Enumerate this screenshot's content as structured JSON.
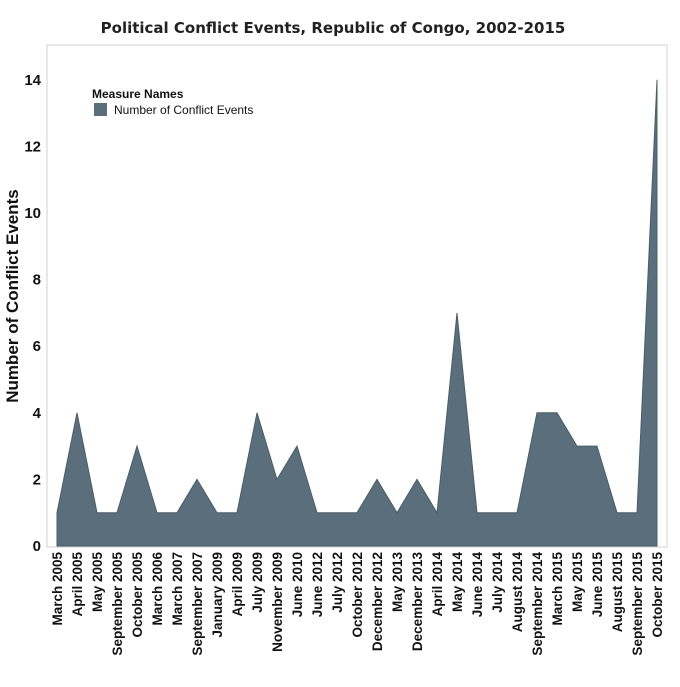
{
  "chart_data": {
    "type": "area",
    "title": "Political Conflict Events, Republic of Congo, 2002-2015",
    "ylabel": "Number of Conflict Events",
    "xlabel": "",
    "ylim": [
      0,
      15
    ],
    "yticks": [
      0,
      2,
      4,
      6,
      8,
      10,
      12,
      14
    ],
    "grid": false,
    "legend": {
      "title": "Measure Names",
      "position": "top-left",
      "entries": [
        "Number of Conflict Events"
      ]
    },
    "categories": [
      "March 2005",
      "April 2005",
      "May 2005",
      "September 2005",
      "October 2005",
      "March 2006",
      "March 2007",
      "September 2007",
      "January 2009",
      "April 2009",
      "July 2009",
      "November 2009",
      "June 2010",
      "June 2012",
      "July 2012",
      "October 2012",
      "December 2012",
      "May 2013",
      "December 2013",
      "April 2014",
      "May 2014",
      "June 2014",
      "July 2014",
      "August 2014",
      "September 2014",
      "March 2015",
      "May 2015",
      "June 2015",
      "August 2015",
      "September 2015",
      "October 2015"
    ],
    "series": [
      {
        "name": "Number of Conflict Events",
        "color": "#5a6f7b",
        "values": [
          1,
          4,
          1,
          1,
          3,
          1,
          1,
          2,
          1,
          1,
          4,
          2,
          3,
          1,
          1,
          1,
          2,
          1,
          2,
          1,
          7,
          1,
          1,
          1,
          4,
          4,
          3,
          3,
          1,
          1,
          14
        ]
      }
    ]
  }
}
